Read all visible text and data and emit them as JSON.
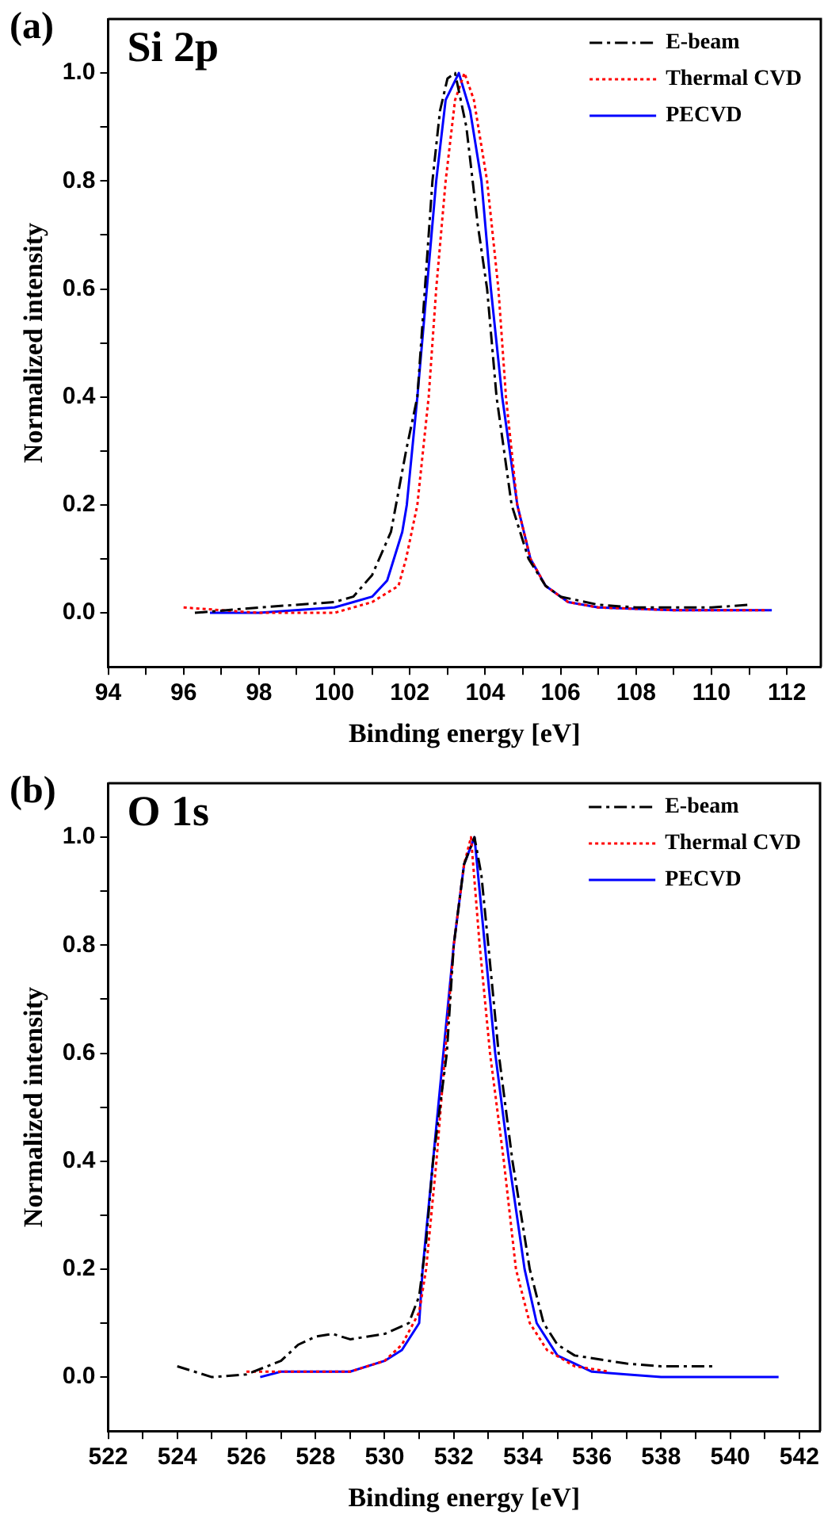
{
  "chart_data": [
    {
      "type": "line",
      "title": "Si 2p",
      "xlabel": "Binding energy [eV]",
      "ylabel": "Normalized intensity",
      "annotations": [
        "(a)"
      ],
      "legend": "top right",
      "grid": false,
      "marker": "none",
      "xlim": [
        94,
        112.9
      ],
      "ylim": [
        -0.1,
        1.1
      ],
      "xticks": [
        94,
        {
          "value": 95,
          "label": null
        },
        96,
        {
          "value": 97,
          "label": null
        },
        98,
        {
          "value": 99,
          "label": null
        },
        100,
        {
          "value": 101,
          "label": null
        },
        102,
        {
          "value": 103,
          "label": null
        },
        104,
        {
          "value": 105,
          "label": null
        },
        106,
        {
          "value": 107,
          "label": null
        },
        108,
        {
          "value": 109,
          "label": null
        },
        110,
        {
          "value": 111,
          "label": null
        },
        112
      ],
      "yticks": [
        {
          "value": 0,
          "label": "0.0"
        },
        {
          "value": 0.1,
          "label": null
        },
        {
          "value": 0.2,
          "label": "0.2"
        },
        {
          "value": 0.3,
          "label": null
        },
        {
          "value": 0.4,
          "label": "0.4"
        },
        {
          "value": 0.5,
          "label": null
        },
        {
          "value": 0.6,
          "label": "0.6"
        },
        {
          "value": 0.7,
          "label": null
        },
        {
          "value": 0.8,
          "label": "0.8"
        },
        {
          "value": 0.9,
          "label": null
        },
        {
          "value": 1,
          "label": "1.0"
        }
      ],
      "series": [
        {
          "name": "E-beam",
          "color": "#000000",
          "line_style": "dashdot",
          "x": [
            96.3,
            98,
            100,
            100.5,
            101,
            101.5,
            101.9,
            102.2,
            102.4,
            102.6,
            102.8,
            103.0,
            103.2,
            103.5,
            103.8,
            104.05,
            104.3,
            104.7,
            105.15,
            105.6,
            106,
            107,
            108,
            110,
            111
          ],
          "values": [
            0.0,
            0.01,
            0.02,
            0.03,
            0.07,
            0.15,
            0.3,
            0.4,
            0.6,
            0.8,
            0.93,
            0.99,
            1.0,
            0.9,
            0.72,
            0.6,
            0.4,
            0.2,
            0.1,
            0.05,
            0.03,
            0.015,
            0.01,
            0.01,
            0.015
          ]
        },
        {
          "name": "Thermal CVD",
          "color": "#ff0000",
          "line_style": "dotted",
          "x": [
            96.0,
            98,
            100,
            101,
            101.7,
            101.9,
            102.2,
            102.5,
            102.7,
            102.95,
            103.2,
            103.45,
            103.7,
            104.05,
            104.35,
            104.55,
            104.85,
            105.2,
            105.6,
            106.2,
            107,
            109,
            111.5
          ],
          "values": [
            0.01,
            0.0,
            0.0,
            0.02,
            0.05,
            0.1,
            0.2,
            0.4,
            0.6,
            0.8,
            0.95,
            1.0,
            0.95,
            0.8,
            0.6,
            0.4,
            0.2,
            0.1,
            0.05,
            0.02,
            0.01,
            0.005,
            0.005
          ]
        },
        {
          "name": "PECVD",
          "color": "#0000ff",
          "line_style": "solid",
          "x": [
            96.7,
            98,
            100,
            100.5,
            101,
            101.4,
            101.8,
            101.92,
            102.2,
            102.45,
            102.7,
            102.95,
            103.3,
            103.6,
            103.9,
            104.15,
            104.45,
            104.85,
            105.2,
            105.6,
            106.2,
            107,
            109,
            111.6
          ],
          "values": [
            0.0,
            0.0,
            0.01,
            0.02,
            0.03,
            0.06,
            0.15,
            0.2,
            0.4,
            0.6,
            0.8,
            0.95,
            1.0,
            0.93,
            0.8,
            0.6,
            0.4,
            0.2,
            0.1,
            0.05,
            0.02,
            0.01,
            0.005,
            0.005
          ]
        }
      ]
    },
    {
      "type": "line",
      "title": "O 1s",
      "xlabel": "Binding energy [eV]",
      "ylabel": "Normalized intensity",
      "annotations": [
        "(b)"
      ],
      "legend": "top right",
      "grid": false,
      "marker": "none",
      "xlim": [
        522,
        542.6
      ],
      "ylim": [
        -0.1,
        1.1
      ],
      "xticks": [
        522,
        {
          "value": 523,
          "label": null
        },
        524,
        {
          "value": 525,
          "label": null
        },
        526,
        {
          "value": 527,
          "label": null
        },
        528,
        {
          "value": 529,
          "label": null
        },
        530,
        {
          "value": 531,
          "label": null
        },
        532,
        {
          "value": 533,
          "label": null
        },
        534,
        {
          "value": 535,
          "label": null
        },
        536,
        {
          "value": 537,
          "label": null
        },
        538,
        {
          "value": 539,
          "label": null
        },
        540,
        {
          "value": 541,
          "label": null
        },
        542
      ],
      "yticks": [
        {
          "value": 0,
          "label": "0.0"
        },
        {
          "value": 0.1,
          "label": null
        },
        {
          "value": 0.2,
          "label": "0.2"
        },
        {
          "value": 0.3,
          "label": null
        },
        {
          "value": 0.4,
          "label": "0.4"
        },
        {
          "value": 0.5,
          "label": null
        },
        {
          "value": 0.6,
          "label": "0.6"
        },
        {
          "value": 0.7,
          "label": null
        },
        {
          "value": 0.8,
          "label": "0.8"
        },
        {
          "value": 0.9,
          "label": null
        },
        {
          "value": 1,
          "label": "1.0"
        }
      ],
      "series": [
        {
          "name": "E-beam",
          "color": "#000000",
          "line_style": "dashdot",
          "x": [
            524,
            525,
            526,
            527,
            527.5,
            528,
            528.5,
            529,
            530,
            530.7,
            531,
            531.2,
            531.4,
            531.8,
            532.0,
            532.3,
            532.6,
            532.8,
            533.0,
            533.3,
            533.7,
            534.2,
            534.6,
            535,
            535.5,
            536,
            537,
            538,
            539.5
          ],
          "values": [
            0.02,
            0.0,
            0.005,
            0.03,
            0.06,
            0.075,
            0.08,
            0.07,
            0.08,
            0.1,
            0.15,
            0.25,
            0.4,
            0.6,
            0.8,
            0.95,
            1.0,
            0.93,
            0.8,
            0.6,
            0.4,
            0.2,
            0.1,
            0.06,
            0.04,
            0.035,
            0.025,
            0.02,
            0.02
          ]
        },
        {
          "name": "Thermal CVD",
          "color": "#ff0000",
          "line_style": "dotted",
          "x": [
            526,
            528,
            529,
            530,
            530.5,
            531,
            531.2,
            531.5,
            531.75,
            532.0,
            532.3,
            532.5,
            532.75,
            533.05,
            533.45,
            533.8,
            534.2,
            534.7,
            535.5,
            536.5
          ],
          "values": [
            0.01,
            0.01,
            0.01,
            0.03,
            0.06,
            0.12,
            0.2,
            0.4,
            0.6,
            0.8,
            0.95,
            1.0,
            0.8,
            0.6,
            0.4,
            0.2,
            0.1,
            0.05,
            0.02,
            0.01
          ]
        },
        {
          "name": "PECVD",
          "color": "#0000ff",
          "line_style": "solid",
          "x": [
            526.4,
            527,
            529,
            530,
            530.5,
            531,
            531.1,
            531.4,
            531.7,
            532.0,
            532.3,
            532.6,
            532.9,
            533.2,
            533.6,
            534.05,
            534.4,
            535,
            536,
            537,
            538,
            541.4
          ],
          "values": [
            0.0,
            0.01,
            0.01,
            0.03,
            0.05,
            0.1,
            0.2,
            0.4,
            0.6,
            0.8,
            0.95,
            1.0,
            0.8,
            0.6,
            0.4,
            0.2,
            0.1,
            0.04,
            0.01,
            0.005,
            0.0,
            0.0
          ]
        }
      ]
    }
  ]
}
